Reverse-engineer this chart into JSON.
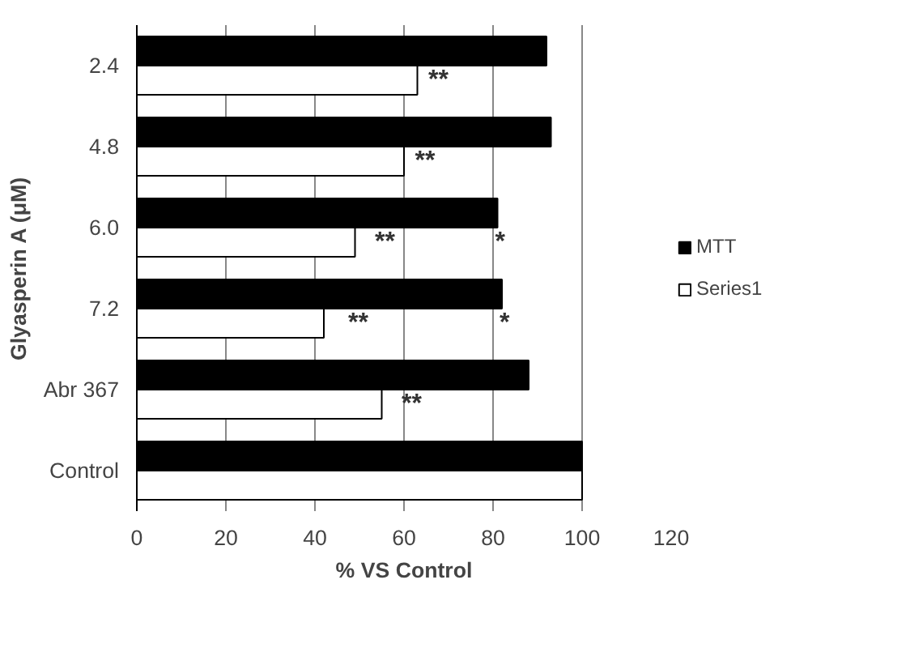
{
  "chart_data": {
    "type": "bar",
    "orientation": "horizontal",
    "ylabel": "Glyasperin A (μM)",
    "xlabel": "% VS Control",
    "categories": [
      "2.4",
      "4.8",
      "6.0",
      "7.2",
      "Abr 367",
      "Control"
    ],
    "series": [
      {
        "name": "MTT",
        "color": "#000000",
        "values": [
          92,
          93,
          81,
          82,
          88,
          100
        ]
      },
      {
        "name": "Series1",
        "color": "#ffffff",
        "values": [
          63,
          60,
          49,
          42,
          55,
          100
        ]
      }
    ],
    "xlim": [
      0,
      120
    ],
    "xticks": [
      0,
      20,
      40,
      60,
      80,
      100,
      120
    ],
    "grid": "x",
    "legend": "right",
    "annotations": [
      {
        "text": "**",
        "x": 64,
        "y": "2.4"
      },
      {
        "text": "**",
        "x": 61,
        "y": "4.8"
      },
      {
        "text": "**",
        "x": 52,
        "y": "6.0"
      },
      {
        "text": "**",
        "x": 46,
        "y": "7.2"
      },
      {
        "text": "**",
        "x": 58,
        "y": "Abr 367"
      },
      {
        "text": "*",
        "x": 79,
        "y": "6.0"
      },
      {
        "text": "*",
        "x": 80,
        "y": "7.2"
      }
    ]
  }
}
